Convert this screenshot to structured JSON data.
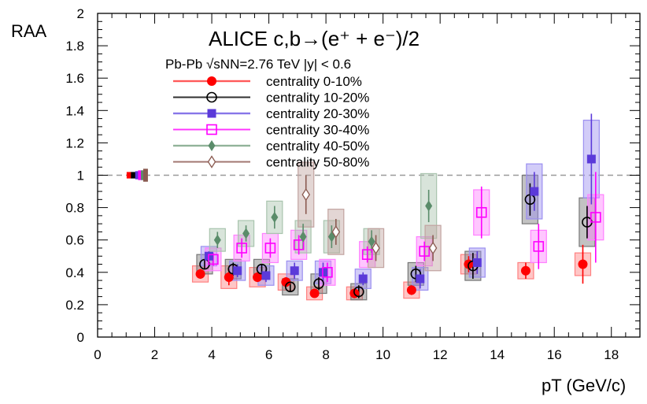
{
  "chart_data": {
    "type": "scatter",
    "title": "ALICE c,b→(e⁺ + e⁻)/2",
    "subtitle": "Pb-Pb √sNN=2.76 TeV |y| < 0.6",
    "xlabel": "pT (GeV/c)",
    "ylabel": "RAA",
    "xlim": [
      0,
      19
    ],
    "ylim": [
      0,
      2
    ],
    "x_ticks": [
      "0",
      "2",
      "4",
      "6",
      "8",
      "10",
      "12",
      "14",
      "16",
      "18"
    ],
    "y_ticks": [
      "0",
      "0.2",
      "0.4",
      "0.6",
      "0.8",
      "1",
      "1.2",
      "1.4",
      "1.6",
      "1.8",
      "2"
    ],
    "reference_line": 1,
    "legend_position": "upper-middle",
    "series": [
      {
        "name": "centrality 0-10%",
        "marker": "circle-filled",
        "color": "#ff0000",
        "box_color": "#ff8080",
        "points": [
          {
            "x": 3.6,
            "y": 0.39,
            "stat": 0.03,
            "syst": 0.05
          },
          {
            "x": 4.6,
            "y": 0.37,
            "stat": 0.05,
            "syst": 0.07
          },
          {
            "x": 5.6,
            "y": 0.37,
            "stat": 0.03,
            "syst": 0.06
          },
          {
            "x": 6.6,
            "y": 0.34,
            "stat": 0.03,
            "syst": 0.05
          },
          {
            "x": 7.6,
            "y": 0.27,
            "stat": 0.02,
            "syst": 0.04
          },
          {
            "x": 9.0,
            "y": 0.27,
            "stat": 0.03,
            "syst": 0.04
          },
          {
            "x": 11.0,
            "y": 0.29,
            "stat": 0.03,
            "syst": 0.05
          },
          {
            "x": 13.0,
            "y": 0.45,
            "stat": 0.05,
            "syst": 0.06
          },
          {
            "x": 15.0,
            "y": 0.41,
            "stat": 0.05,
            "syst": 0.05
          },
          {
            "x": 17.0,
            "y": 0.45,
            "stat": 0.12,
            "syst": 0.07
          }
        ]
      },
      {
        "name": "centrality 10-20%",
        "marker": "circle-open",
        "color": "#000000",
        "box_color": "#777777",
        "points": [
          {
            "x": 3.75,
            "y": 0.45,
            "stat": 0.03,
            "syst": 0.06
          },
          {
            "x": 4.75,
            "y": 0.42,
            "stat": 0.04,
            "syst": 0.06
          },
          {
            "x": 5.75,
            "y": 0.42,
            "stat": 0.03,
            "syst": 0.06
          },
          {
            "x": 6.75,
            "y": 0.31,
            "stat": 0.03,
            "syst": 0.05
          },
          {
            "x": 7.75,
            "y": 0.33,
            "stat": 0.04,
            "syst": 0.06
          },
          {
            "x": 9.15,
            "y": 0.28,
            "stat": 0.04,
            "syst": 0.05
          },
          {
            "x": 11.15,
            "y": 0.39,
            "stat": 0.05,
            "syst": 0.07
          },
          {
            "x": 13.15,
            "y": 0.44,
            "stat": 0.08,
            "syst": 0.09
          },
          {
            "x": 15.15,
            "y": 0.85,
            "stat": 0.1,
            "syst": 0.15
          },
          {
            "x": 17.15,
            "y": 0.71,
            "stat": 0.1,
            "syst": 0.15
          }
        ]
      },
      {
        "name": "centrality 20-30%",
        "marker": "square-filled",
        "color": "#5b3ad9",
        "box_color": "#9b8ff0",
        "points": [
          {
            "x": 3.9,
            "y": 0.5,
            "stat": 0.03,
            "syst": 0.06
          },
          {
            "x": 4.9,
            "y": 0.41,
            "stat": 0.04,
            "syst": 0.06
          },
          {
            "x": 5.9,
            "y": 0.38,
            "stat": 0.04,
            "syst": 0.06
          },
          {
            "x": 6.9,
            "y": 0.41,
            "stat": 0.05,
            "syst": 0.06
          },
          {
            "x": 7.9,
            "y": 0.4,
            "stat": 0.06,
            "syst": 0.07
          },
          {
            "x": 9.3,
            "y": 0.36,
            "stat": 0.04,
            "syst": 0.06
          },
          {
            "x": 11.3,
            "y": 0.36,
            "stat": 0.06,
            "syst": 0.07
          },
          {
            "x": 13.3,
            "y": 0.46,
            "stat": 0.07,
            "syst": 0.09
          },
          {
            "x": 15.3,
            "y": 0.9,
            "stat": 0.12,
            "syst": 0.17
          },
          {
            "x": 17.3,
            "y": 1.1,
            "stat": 0.28,
            "syst": 0.24
          }
        ]
      },
      {
        "name": "centrality 30-40%",
        "marker": "square-open",
        "color": "#ff00ff",
        "box_color": "#ff80ff",
        "points": [
          {
            "x": 4.05,
            "y": 0.48,
            "stat": 0.04,
            "syst": 0.07
          },
          {
            "x": 5.05,
            "y": 0.55,
            "stat": 0.06,
            "syst": 0.08
          },
          {
            "x": 6.05,
            "y": 0.55,
            "stat": 0.06,
            "syst": 0.09
          },
          {
            "x": 7.05,
            "y": 0.57,
            "stat": 0.06,
            "syst": 0.09
          },
          {
            "x": 8.05,
            "y": 0.4,
            "stat": 0.06,
            "syst": 0.08
          },
          {
            "x": 9.45,
            "y": 0.51,
            "stat": 0.05,
            "syst": 0.08
          },
          {
            "x": 11.45,
            "y": 0.53,
            "stat": 0.06,
            "syst": 0.09
          },
          {
            "x": 13.45,
            "y": 0.77,
            "stat": 0.16,
            "syst": 0.14
          },
          {
            "x": 15.45,
            "y": 0.56,
            "stat": 0.14,
            "syst": 0.1
          },
          {
            "x": 17.45,
            "y": 0.74,
            "stat": 0.28,
            "syst": 0.14
          }
        ]
      },
      {
        "name": "centrality 40-50%",
        "marker": "diamond-filled",
        "color": "#5a8c6a",
        "box_color": "#a9c4ae",
        "points": [
          {
            "x": 4.2,
            "y": 0.6,
            "stat": 0.05,
            "syst": 0.07
          },
          {
            "x": 5.2,
            "y": 0.64,
            "stat": 0.05,
            "syst": 0.08
          },
          {
            "x": 6.2,
            "y": 0.74,
            "stat": 0.07,
            "syst": 0.1
          },
          {
            "x": 7.2,
            "y": 0.62,
            "stat": 0.08,
            "syst": 0.1
          },
          {
            "x": 8.2,
            "y": 0.62,
            "stat": 0.07,
            "syst": 0.1
          },
          {
            "x": 9.6,
            "y": 0.59,
            "stat": 0.07,
            "syst": 0.08
          },
          {
            "x": 11.6,
            "y": 0.81,
            "stat": 0.1,
            "syst": 0.2
          }
        ]
      },
      {
        "name": "centrality 50-80%",
        "marker": "diamond-open",
        "color": "#8a5a50",
        "box_color": "#c2a3a0",
        "points": [
          {
            "x": 7.3,
            "y": 0.88,
            "stat": 0.12,
            "syst": 0.2
          },
          {
            "x": 8.35,
            "y": 0.65,
            "stat": 0.08,
            "syst": 0.14
          },
          {
            "x": 9.75,
            "y": 0.55,
            "stat": 0.08,
            "syst": 0.12
          },
          {
            "x": 11.75,
            "y": 0.55,
            "stat": 0.08,
            "syst": 0.14
          }
        ]
      }
    ],
    "normalization_boxes": [
      {
        "x": 1.1,
        "color": "#ff0000",
        "half_height": 0.02
      },
      {
        "x": 1.25,
        "color": "#000000",
        "half_height": 0.02
      },
      {
        "x": 1.4,
        "color": "#5b3ad9",
        "half_height": 0.025
      },
      {
        "x": 1.5,
        "color": "#ff00ff",
        "half_height": 0.03
      },
      {
        "x": 1.6,
        "color": "#5a8c6a",
        "half_height": 0.03
      },
      {
        "x": 1.68,
        "color": "#8a5a50",
        "half_height": 0.04
      }
    ]
  }
}
